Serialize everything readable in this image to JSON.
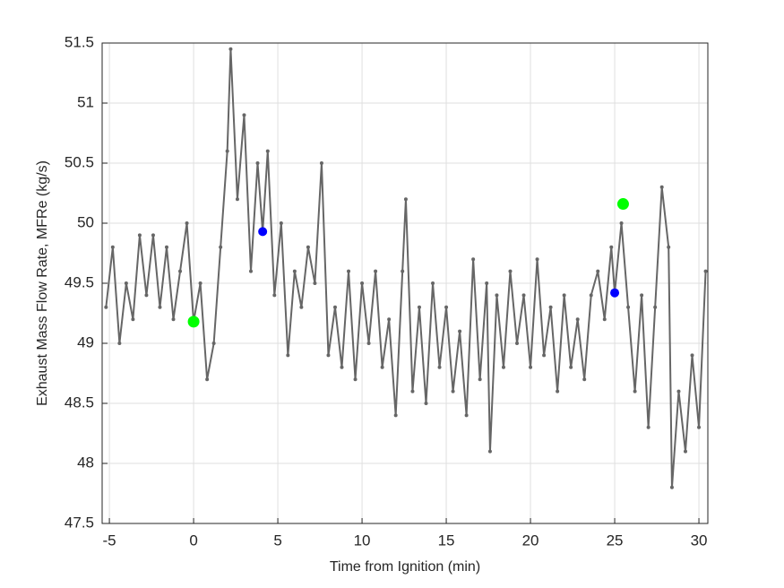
{
  "chart_data": {
    "type": "line",
    "xlabel": "Time from Ignition (min)",
    "ylabel": "Exhaust Mass Flow Rate, MFRe (kg/s)",
    "xlim": [
      -5.43,
      30.53
    ],
    "ylim": [
      47.5,
      51.5
    ],
    "xticks": [
      -5,
      0,
      5,
      10,
      15,
      20,
      25,
      30
    ],
    "yticks": [
      47.5,
      48,
      48.5,
      49,
      49.5,
      50,
      50.5,
      51,
      51.5
    ],
    "grid": true,
    "x": [
      -5.2,
      -4.8,
      -4.4,
      -4.0,
      -3.6,
      -3.2,
      -2.8,
      -2.4,
      -2.0,
      -1.6,
      -1.2,
      -0.8,
      -0.4,
      0.0,
      0.4,
      0.8,
      1.2,
      1.6,
      2.0,
      2.2,
      2.6,
      3.0,
      3.4,
      3.8,
      4.1,
      4.4,
      4.8,
      5.2,
      5.6,
      6.0,
      6.4,
      6.8,
      7.2,
      7.6,
      8.0,
      8.4,
      8.8,
      9.2,
      9.6,
      10.0,
      10.4,
      10.8,
      11.2,
      11.6,
      12.0,
      12.4,
      12.6,
      13.0,
      13.4,
      13.8,
      14.2,
      14.6,
      15.0,
      15.4,
      15.8,
      16.2,
      16.6,
      17.0,
      17.4,
      17.6,
      18.0,
      18.4,
      18.8,
      19.2,
      19.6,
      20.0,
      20.4,
      20.8,
      21.2,
      21.6,
      22.0,
      22.4,
      22.8,
      23.2,
      23.6,
      24.0,
      24.4,
      24.8,
      25.0,
      25.4,
      25.8,
      26.2,
      26.6,
      27.0,
      27.4,
      27.8,
      28.2,
      28.4,
      28.8,
      29.2,
      29.6,
      30.0,
      30.4
    ],
    "series": [
      {
        "color": "#666666",
        "values": [
          49.3,
          49.8,
          49.0,
          49.5,
          49.2,
          49.9,
          49.4,
          49.9,
          49.3,
          49.8,
          49.2,
          49.6,
          50.0,
          49.18,
          49.5,
          48.7,
          49.0,
          49.8,
          50.6,
          51.45,
          50.2,
          50.9,
          49.6,
          50.5,
          49.93,
          50.6,
          49.4,
          50.0,
          48.9,
          49.6,
          49.3,
          49.8,
          49.5,
          50.5,
          48.9,
          49.3,
          48.8,
          49.6,
          48.7,
          49.5,
          49.0,
          49.6,
          48.8,
          49.2,
          48.4,
          49.6,
          50.2,
          48.6,
          49.3,
          48.5,
          49.5,
          48.8,
          49.3,
          48.6,
          49.1,
          48.4,
          49.7,
          48.7,
          49.5,
          48.1,
          49.4,
          48.8,
          49.6,
          49.0,
          49.4,
          48.8,
          49.7,
          48.9,
          49.3,
          48.6,
          49.4,
          48.8,
          49.2,
          48.7,
          49.4,
          49.6,
          49.2,
          49.8,
          49.42,
          50.0,
          49.3,
          48.6,
          49.4,
          48.3,
          49.3,
          50.3,
          49.8,
          47.8,
          48.6,
          48.1,
          48.9,
          48.3,
          49.6
        ]
      }
    ],
    "points": [
      {
        "x": 0.0,
        "y": 49.18,
        "color": "#00ff00",
        "size": 6.5
      },
      {
        "x": 25.5,
        "y": 50.16,
        "color": "#00ff00",
        "size": 6.5
      },
      {
        "x": 4.1,
        "y": 49.93,
        "color": "#0000ff",
        "size": 5
      },
      {
        "x": 25.0,
        "y": 49.42,
        "color": "#0000ff",
        "size": 5
      }
    ]
  }
}
